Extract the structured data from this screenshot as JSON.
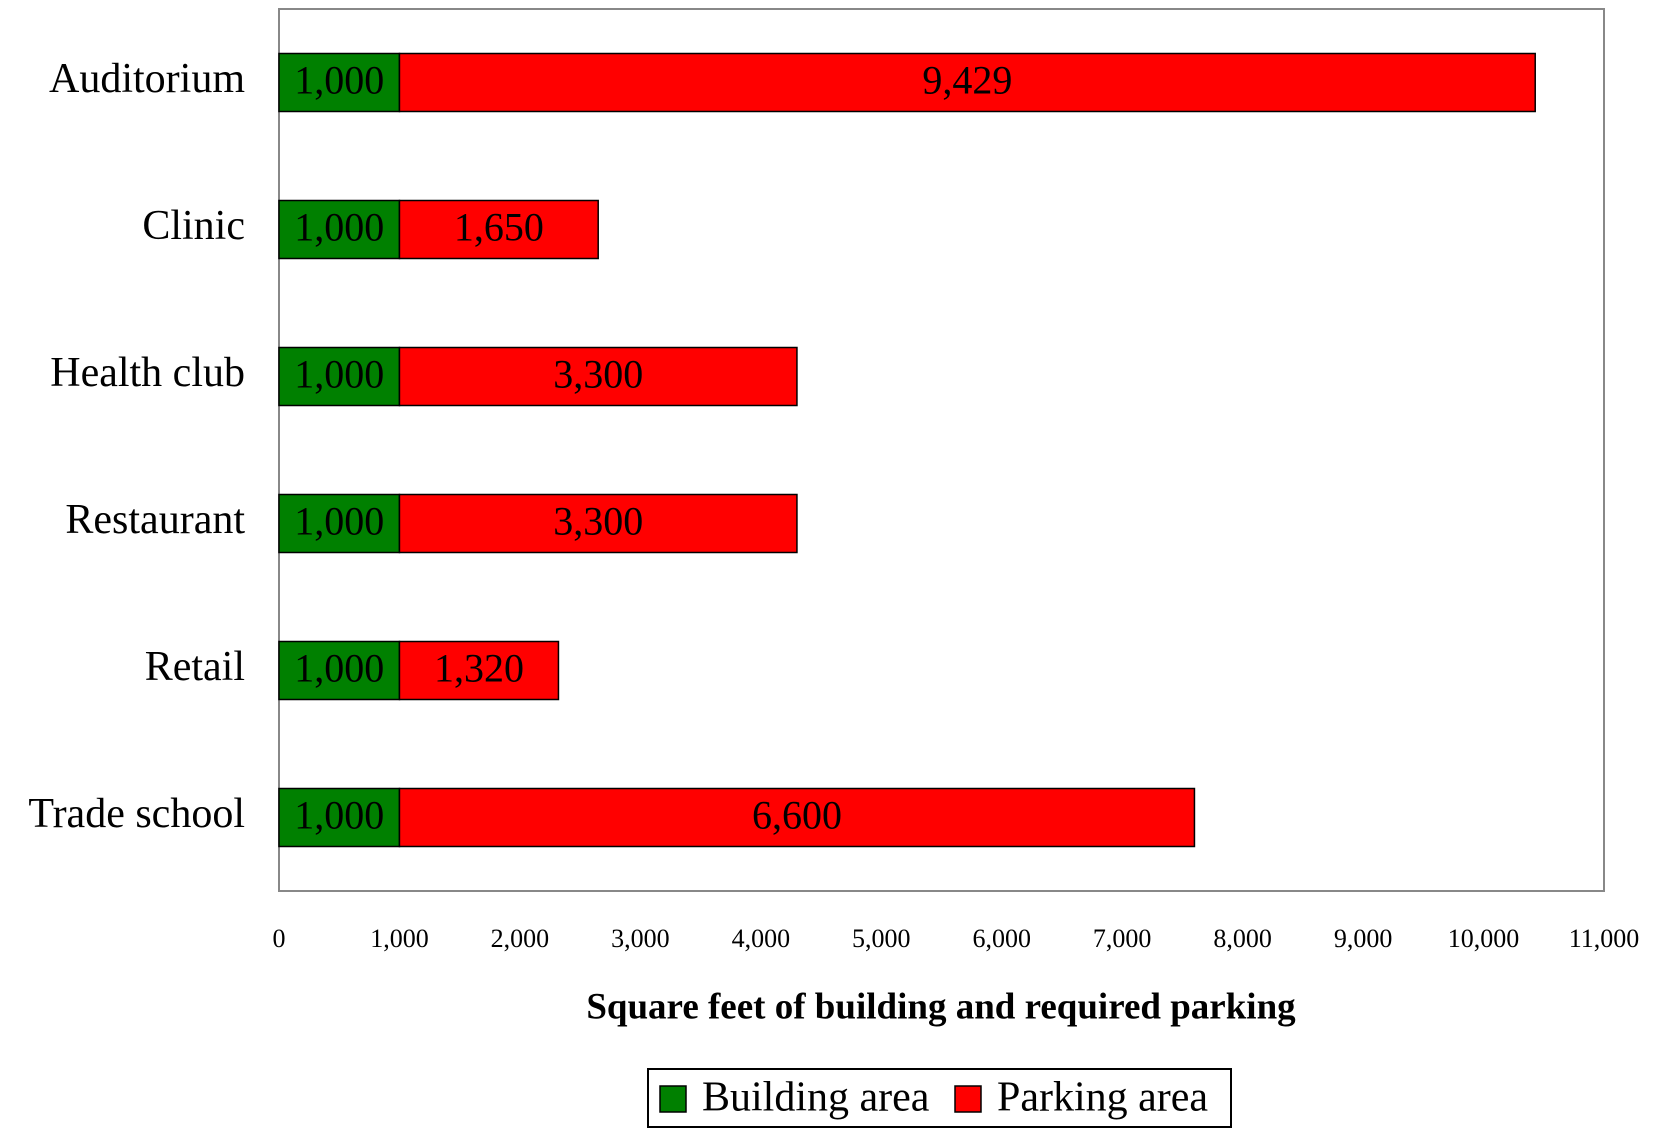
{
  "chart_data": {
    "type": "stacked-bar-horizontal",
    "x_label": "Square feet of building and required parking",
    "categories": [
      "Auditorium",
      "Clinic",
      "Health club",
      "Restaurant",
      "Retail",
      "Trade school"
    ],
    "series": [
      {
        "name": "Building area",
        "color": "#008000",
        "values": [
          1000,
          1000,
          1000,
          1000,
          1000,
          1000
        ],
        "value_labels": [
          "1,000",
          "1,000",
          "1,000",
          "1,000",
          "1,000",
          "1,000"
        ]
      },
      {
        "name": "Parking area",
        "color": "#ff0000",
        "values": [
          9429,
          1650,
          3300,
          3300,
          1320,
          6600
        ],
        "value_labels": [
          "9,429",
          "1,650",
          "3,300",
          "3,300",
          "1,320",
          "6,600"
        ]
      }
    ],
    "xlim": [
      0,
      11000
    ],
    "xticks": [
      0,
      {
        "value": 1000,
        "label": "1,000"
      },
      {
        "value": 2000,
        "label": "2,000"
      },
      {
        "value": 3000,
        "label": "3,000"
      },
      {
        "value": 4000,
        "label": "4,000"
      },
      {
        "value": 5000,
        "label": "5,000"
      },
      {
        "value": 6000,
        "label": "6,000"
      },
      {
        "value": 7000,
        "label": "7,000"
      },
      {
        "value": 8000,
        "label": "8,000"
      },
      {
        "value": 9000,
        "label": "9,000"
      },
      {
        "value": 10000,
        "label": "10,000"
      },
      {
        "value": 11000,
        "label": "11,000"
      }
    ],
    "legend": "bottom"
  }
}
